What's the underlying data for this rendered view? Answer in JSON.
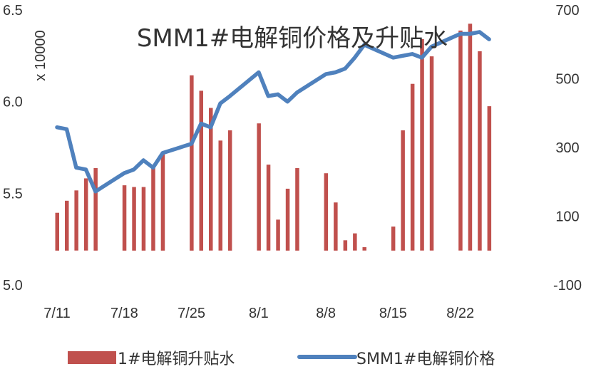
{
  "chart_data": {
    "type": "bar+line",
    "title": "SMM1#电解铜价格及升贴水",
    "left_axis": {
      "label": "x 10000",
      "ylim": [
        5.0,
        6.5
      ],
      "ticks": [
        "5.0",
        "5.5",
        "6.0",
        "6.5"
      ]
    },
    "right_axis": {
      "ylim": [
        -100,
        700
      ],
      "ticks": [
        "-100",
        "100",
        "300",
        "500",
        "700"
      ]
    },
    "x_ticks": [
      "7/11",
      "7/18",
      "7/25",
      "8/1",
      "8/8",
      "8/15",
      "8/22"
    ],
    "legend": {
      "position": "bottom",
      "bar_label": "1#电解铜升贴水",
      "line_label": "SMM1#电解铜价格"
    },
    "colors": {
      "bar": "#c0504d",
      "line": "#4f81bd"
    },
    "series": [
      {
        "name": "1#电解铜升贴水",
        "axis": "right",
        "kind": "bar",
        "points": [
          {
            "x": "7/11",
            "y": 110
          },
          {
            "x": "7/12",
            "y": 145
          },
          {
            "x": "7/13",
            "y": 175
          },
          {
            "x": "7/14",
            "y": 210
          },
          {
            "x": "7/15",
            "y": 240
          },
          {
            "x": "7/18",
            "y": 190
          },
          {
            "x": "7/19",
            "y": 185
          },
          {
            "x": "7/20",
            "y": 185
          },
          {
            "x": "7/21",
            "y": 240
          },
          {
            "x": "7/22",
            "y": 280
          },
          {
            "x": "7/25",
            "y": 510
          },
          {
            "x": "7/26",
            "y": 465
          },
          {
            "x": "7/27",
            "y": 415
          },
          {
            "x": "7/28",
            "y": 320
          },
          {
            "x": "7/29",
            "y": 350
          },
          {
            "x": "8/1",
            "y": 370
          },
          {
            "x": "8/2",
            "y": 250
          },
          {
            "x": "8/3",
            "y": 90
          },
          {
            "x": "8/4",
            "y": 180
          },
          {
            "x": "8/5",
            "y": 240
          },
          {
            "x": "8/8",
            "y": 225
          },
          {
            "x": "8/9",
            "y": 140
          },
          {
            "x": "8/10",
            "y": 30
          },
          {
            "x": "8/11",
            "y": 50
          },
          {
            "x": "8/12",
            "y": 10
          },
          {
            "x": "8/15",
            "y": 70
          },
          {
            "x": "8/16",
            "y": 350
          },
          {
            "x": "8/17",
            "y": 485
          },
          {
            "x": "8/18",
            "y": 615
          },
          {
            "x": "8/19",
            "y": 565
          },
          {
            "x": "8/22",
            "y": 640
          },
          {
            "x": "8/23",
            "y": 660
          },
          {
            "x": "8/24",
            "y": 580
          },
          {
            "x": "8/25",
            "y": 420
          }
        ]
      },
      {
        "name": "SMM1#电解铜价格",
        "axis": "left",
        "kind": "line",
        "points": [
          {
            "x": "7/11",
            "y": 5.86
          },
          {
            "x": "7/12",
            "y": 5.85
          },
          {
            "x": "7/13",
            "y": 5.64
          },
          {
            "x": "7/14",
            "y": 5.63
          },
          {
            "x": "7/15",
            "y": 5.51
          },
          {
            "x": "7/18",
            "y": 5.61
          },
          {
            "x": "7/19",
            "y": 5.63
          },
          {
            "x": "7/20",
            "y": 5.68
          },
          {
            "x": "7/21",
            "y": 5.64
          },
          {
            "x": "7/22",
            "y": 5.72
          },
          {
            "x": "7/25",
            "y": 5.77
          },
          {
            "x": "7/26",
            "y": 5.88
          },
          {
            "x": "7/27",
            "y": 5.86
          },
          {
            "x": "7/28",
            "y": 5.99
          },
          {
            "x": "7/29",
            "y": 6.03
          },
          {
            "x": "8/1",
            "y": 6.16
          },
          {
            "x": "8/2",
            "y": 6.03
          },
          {
            "x": "8/3",
            "y": 6.04
          },
          {
            "x": "8/4",
            "y": 6.0
          },
          {
            "x": "8/5",
            "y": 6.05
          },
          {
            "x": "8/8",
            "y": 6.15
          },
          {
            "x": "8/9",
            "y": 6.16
          },
          {
            "x": "8/10",
            "y": 6.18
          },
          {
            "x": "8/11",
            "y": 6.24
          },
          {
            "x": "8/12",
            "y": 6.31
          },
          {
            "x": "8/15",
            "y": 6.24
          },
          {
            "x": "8/16",
            "y": 6.25
          },
          {
            "x": "8/17",
            "y": 6.26
          },
          {
            "x": "8/18",
            "y": 6.24
          },
          {
            "x": "8/19",
            "y": 6.3
          },
          {
            "x": "8/22",
            "y": 6.37
          },
          {
            "x": "8/23",
            "y": 6.37
          },
          {
            "x": "8/24",
            "y": 6.38
          },
          {
            "x": "8/25",
            "y": 6.34
          }
        ]
      }
    ]
  }
}
